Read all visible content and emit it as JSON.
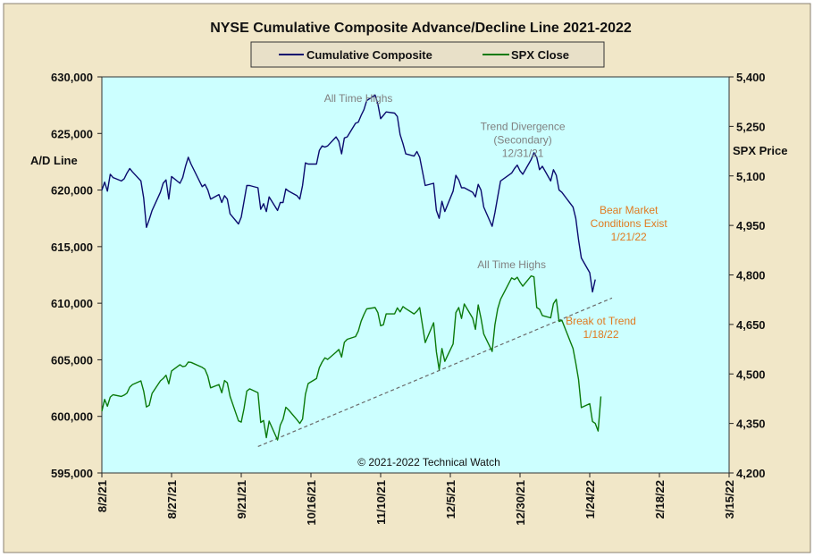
{
  "chart_data": {
    "type": "line",
    "title": "NYSE Cumulative  Composite Advance/Decline Line 2021-2022",
    "left_axis_label": "A/D Line",
    "right_axis_label": "SPX Price",
    "left_ylim": [
      595000,
      630000
    ],
    "right_ylim": [
      4200,
      5400
    ],
    "left_ticks": [
      "630,000",
      "625,000",
      "620,000",
      "615,000",
      "610,000",
      "605,000",
      "600,000",
      "595,000"
    ],
    "right_ticks": [
      "5,400",
      "5,250",
      "5,100",
      "4,950",
      "4,800",
      "4,650",
      "4,500",
      "4,350",
      "4,200"
    ],
    "x_ticks": [
      "8/2/21",
      "8/27/21",
      "9/21/21",
      "10/16/21",
      "11/10/21",
      "12/5/21",
      "12/30/21",
      "1/24/22",
      "2/18/22",
      "3/15/22"
    ],
    "xlim": [
      "2021-08-02",
      "2022-03-15"
    ],
    "grid": false,
    "legend_position": "top-center",
    "plot_background": "#ccffff",
    "frame_background": "#f1e7c8",
    "copyright": "© 2021-2022  Technical Watch",
    "series": [
      {
        "name": "Cumulative Composite",
        "axis": "left",
        "color": "#0b0b6e",
        "points": [
          [
            "2021-08-02",
            620000
          ],
          [
            "2021-08-03",
            620700
          ],
          [
            "2021-08-04",
            619900
          ],
          [
            "2021-08-05",
            621400
          ],
          [
            "2021-08-06",
            621100
          ],
          [
            "2021-08-09",
            620800
          ],
          [
            "2021-08-10",
            621000
          ],
          [
            "2021-08-11",
            621500
          ],
          [
            "2021-08-12",
            621900
          ],
          [
            "2021-08-13",
            621600
          ],
          [
            "2021-08-16",
            620800
          ],
          [
            "2021-08-17",
            619300
          ],
          [
            "2021-08-18",
            616700
          ],
          [
            "2021-08-19",
            617400
          ],
          [
            "2021-08-20",
            618200
          ],
          [
            "2021-08-23",
            619800
          ],
          [
            "2021-08-24",
            620600
          ],
          [
            "2021-08-25",
            620900
          ],
          [
            "2021-08-26",
            619200
          ],
          [
            "2021-08-27",
            621200
          ],
          [
            "2021-08-30",
            620600
          ],
          [
            "2021-08-31",
            621100
          ],
          [
            "2021-09-01",
            622100
          ],
          [
            "2021-09-02",
            622900
          ],
          [
            "2021-09-03",
            622300
          ],
          [
            "2021-09-07",
            620300
          ],
          [
            "2021-09-08",
            620500
          ],
          [
            "2021-09-09",
            620000
          ],
          [
            "2021-09-10",
            619200
          ],
          [
            "2021-09-13",
            619600
          ],
          [
            "2021-09-14",
            618900
          ],
          [
            "2021-09-15",
            619500
          ],
          [
            "2021-09-16",
            619200
          ],
          [
            "2021-09-17",
            617900
          ],
          [
            "2021-09-20",
            617000
          ],
          [
            "2021-09-21",
            617600
          ],
          [
            "2021-09-22",
            619000
          ],
          [
            "2021-09-23",
            620400
          ],
          [
            "2021-09-24",
            620400
          ],
          [
            "2021-09-27",
            620200
          ],
          [
            "2021-09-28",
            618300
          ],
          [
            "2021-09-29",
            618800
          ],
          [
            "2021-09-30",
            618100
          ],
          [
            "2021-10-01",
            619400
          ],
          [
            "2021-10-04",
            618200
          ],
          [
            "2021-10-05",
            618900
          ],
          [
            "2021-10-06",
            618900
          ],
          [
            "2021-10-07",
            620100
          ],
          [
            "2021-10-08",
            619900
          ],
          [
            "2021-10-11",
            619500
          ],
          [
            "2021-10-12",
            619200
          ],
          [
            "2021-10-13",
            620400
          ],
          [
            "2021-10-14",
            622400
          ],
          [
            "2021-10-15",
            622300
          ],
          [
            "2021-10-18",
            622300
          ],
          [
            "2021-10-19",
            623500
          ],
          [
            "2021-10-20",
            623900
          ],
          [
            "2021-10-21",
            623800
          ],
          [
            "2021-10-22",
            623900
          ],
          [
            "2021-10-25",
            624700
          ],
          [
            "2021-10-26",
            624300
          ],
          [
            "2021-10-27",
            623200
          ],
          [
            "2021-10-28",
            624600
          ],
          [
            "2021-10-29",
            624700
          ],
          [
            "2021-11-01",
            625900
          ],
          [
            "2021-11-02",
            626000
          ],
          [
            "2021-11-03",
            626600
          ],
          [
            "2021-11-04",
            627100
          ],
          [
            "2021-11-05",
            627900
          ],
          [
            "2021-11-08",
            628400
          ],
          [
            "2021-11-09",
            627600
          ],
          [
            "2021-11-10",
            626300
          ],
          [
            "2021-11-11",
            626600
          ],
          [
            "2021-11-12",
            626900
          ],
          [
            "2021-11-15",
            626800
          ],
          [
            "2021-11-16",
            626500
          ],
          [
            "2021-11-17",
            624900
          ],
          [
            "2021-11-18",
            624100
          ],
          [
            "2021-11-19",
            623200
          ],
          [
            "2021-11-22",
            623000
          ],
          [
            "2021-11-23",
            623400
          ],
          [
            "2021-11-24",
            622900
          ],
          [
            "2021-11-26",
            620400
          ],
          [
            "2021-11-29",
            620600
          ],
          [
            "2021-11-30",
            618200
          ],
          [
            "2021-12-01",
            617500
          ],
          [
            "2021-12-02",
            619000
          ],
          [
            "2021-12-03",
            618100
          ],
          [
            "2021-12-06",
            619900
          ],
          [
            "2021-12-07",
            621300
          ],
          [
            "2021-12-08",
            620900
          ],
          [
            "2021-12-09",
            620200
          ],
          [
            "2021-12-10",
            620200
          ],
          [
            "2021-12-13",
            619800
          ],
          [
            "2021-12-14",
            619400
          ],
          [
            "2021-12-15",
            620500
          ],
          [
            "2021-12-16",
            620000
          ],
          [
            "2021-12-17",
            618500
          ],
          [
            "2021-12-20",
            616800
          ],
          [
            "2021-12-21",
            618000
          ],
          [
            "2021-12-22",
            619400
          ],
          [
            "2021-12-23",
            620800
          ],
          [
            "2021-12-27",
            621500
          ],
          [
            "2021-12-28",
            621900
          ],
          [
            "2021-12-29",
            622200
          ],
          [
            "2021-12-30",
            621700
          ],
          [
            "2021-12-31",
            621400
          ],
          [
            "2022-01-03",
            622700
          ],
          [
            "2022-01-04",
            623300
          ],
          [
            "2022-01-05",
            622900
          ],
          [
            "2022-01-06",
            621800
          ],
          [
            "2022-01-07",
            622100
          ],
          [
            "2022-01-10",
            620800
          ],
          [
            "2022-01-11",
            621800
          ],
          [
            "2022-01-12",
            621300
          ],
          [
            "2022-01-13",
            620000
          ],
          [
            "2022-01-14",
            619800
          ],
          [
            "2022-01-18",
            618500
          ],
          [
            "2022-01-19",
            617500
          ],
          [
            "2022-01-20",
            615600
          ],
          [
            "2022-01-21",
            614000
          ],
          [
            "2022-01-24",
            612700
          ],
          [
            "2022-01-25",
            611000
          ],
          [
            "2022-01-26",
            612100
          ]
        ]
      },
      {
        "name": "SPX Close",
        "axis": "right",
        "color": "#0b7a0b",
        "points": [
          [
            "2021-08-02",
            4387
          ],
          [
            "2021-08-03",
            4423
          ],
          [
            "2021-08-04",
            4402
          ],
          [
            "2021-08-05",
            4430
          ],
          [
            "2021-08-06",
            4437
          ],
          [
            "2021-08-09",
            4432
          ],
          [
            "2021-08-10",
            4436
          ],
          [
            "2021-08-11",
            4442
          ],
          [
            "2021-08-12",
            4460
          ],
          [
            "2021-08-13",
            4468
          ],
          [
            "2021-08-16",
            4479
          ],
          [
            "2021-08-17",
            4448
          ],
          [
            "2021-08-18",
            4400
          ],
          [
            "2021-08-19",
            4405
          ],
          [
            "2021-08-20",
            4441
          ],
          [
            "2021-08-23",
            4479
          ],
          [
            "2021-08-24",
            4486
          ],
          [
            "2021-08-25",
            4496
          ],
          [
            "2021-08-26",
            4470
          ],
          [
            "2021-08-27",
            4509
          ],
          [
            "2021-08-30",
            4528
          ],
          [
            "2021-08-31",
            4522
          ],
          [
            "2021-09-01",
            4524
          ],
          [
            "2021-09-02",
            4536
          ],
          [
            "2021-09-03",
            4535
          ],
          [
            "2021-09-07",
            4520
          ],
          [
            "2021-09-08",
            4514
          ],
          [
            "2021-09-09",
            4493
          ],
          [
            "2021-09-10",
            4458
          ],
          [
            "2021-09-13",
            4468
          ],
          [
            "2021-09-14",
            4443
          ],
          [
            "2021-09-15",
            4480
          ],
          [
            "2021-09-16",
            4473
          ],
          [
            "2021-09-17",
            4432
          ],
          [
            "2021-09-20",
            4358
          ],
          [
            "2021-09-21",
            4354
          ],
          [
            "2021-09-22",
            4395
          ],
          [
            "2021-09-23",
            4448
          ],
          [
            "2021-09-24",
            4455
          ],
          [
            "2021-09-27",
            4443
          ],
          [
            "2021-09-28",
            4353
          ],
          [
            "2021-09-29",
            4359
          ],
          [
            "2021-09-30",
            4307
          ],
          [
            "2021-10-01",
            4357
          ],
          [
            "2021-10-04",
            4300
          ],
          [
            "2021-10-05",
            4345
          ],
          [
            "2021-10-06",
            4363
          ],
          [
            "2021-10-07",
            4399
          ],
          [
            "2021-10-08",
            4391
          ],
          [
            "2021-10-11",
            4361
          ],
          [
            "2021-10-12",
            4350
          ],
          [
            "2021-10-13",
            4363
          ],
          [
            "2021-10-14",
            4438
          ],
          [
            "2021-10-15",
            4471
          ],
          [
            "2021-10-18",
            4486
          ],
          [
            "2021-10-19",
            4519
          ],
          [
            "2021-10-20",
            4536
          ],
          [
            "2021-10-21",
            4549
          ],
          [
            "2021-10-22",
            4544
          ],
          [
            "2021-10-25",
            4566
          ],
          [
            "2021-10-26",
            4574
          ],
          [
            "2021-10-27",
            4551
          ],
          [
            "2021-10-28",
            4596
          ],
          [
            "2021-10-29",
            4605
          ],
          [
            "2021-11-01",
            4613
          ],
          [
            "2021-11-02",
            4630
          ],
          [
            "2021-11-03",
            4660
          ],
          [
            "2021-11-04",
            4680
          ],
          [
            "2021-11-05",
            4697
          ],
          [
            "2021-11-08",
            4701
          ],
          [
            "2021-11-09",
            4686
          ],
          [
            "2021-11-10",
            4646
          ],
          [
            "2021-11-11",
            4649
          ],
          [
            "2021-11-12",
            4682
          ],
          [
            "2021-11-15",
            4682
          ],
          [
            "2021-11-16",
            4700
          ],
          [
            "2021-11-17",
            4688
          ],
          [
            "2021-11-18",
            4704
          ],
          [
            "2021-11-19",
            4698
          ],
          [
            "2021-11-22",
            4682
          ],
          [
            "2021-11-23",
            4690
          ],
          [
            "2021-11-24",
            4701
          ],
          [
            "2021-11-26",
            4595
          ],
          [
            "2021-11-29",
            4655
          ],
          [
            "2021-11-30",
            4567
          ],
          [
            "2021-12-01",
            4513
          ],
          [
            "2021-12-02",
            4577
          ],
          [
            "2021-12-03",
            4538
          ],
          [
            "2021-12-06",
            4591
          ],
          [
            "2021-12-07",
            4686
          ],
          [
            "2021-12-08",
            4701
          ],
          [
            "2021-12-09",
            4668
          ],
          [
            "2021-12-10",
            4712
          ],
          [
            "2021-12-13",
            4669
          ],
          [
            "2021-12-14",
            4635
          ],
          [
            "2021-12-15",
            4709
          ],
          [
            "2021-12-16",
            4669
          ],
          [
            "2021-12-17",
            4621
          ],
          [
            "2021-12-20",
            4568
          ],
          [
            "2021-12-21",
            4649
          ],
          [
            "2021-12-22",
            4697
          ],
          [
            "2021-12-23",
            4726
          ],
          [
            "2021-12-27",
            4791
          ],
          [
            "2021-12-28",
            4786
          ],
          [
            "2021-12-29",
            4793
          ],
          [
            "2021-12-30",
            4778
          ],
          [
            "2021-12-31",
            4766
          ],
          [
            "2022-01-03",
            4797
          ],
          [
            "2022-01-04",
            4794
          ],
          [
            "2022-01-05",
            4701
          ],
          [
            "2022-01-06",
            4696
          ],
          [
            "2022-01-07",
            4677
          ],
          [
            "2022-01-10",
            4670
          ],
          [
            "2022-01-11",
            4713
          ],
          [
            "2022-01-12",
            4726
          ],
          [
            "2022-01-13",
            4659
          ],
          [
            "2022-01-14",
            4663
          ],
          [
            "2022-01-18",
            4577
          ],
          [
            "2022-01-19",
            4533
          ],
          [
            "2022-01-20",
            4483
          ],
          [
            "2022-01-21",
            4398
          ],
          [
            "2022-01-24",
            4410
          ],
          [
            "2022-01-25",
            4356
          ],
          [
            "2022-01-26",
            4350
          ],
          [
            "2022-01-27",
            4327
          ],
          [
            "2022-01-28",
            4432
          ]
        ]
      }
    ],
    "trendline": {
      "axis": "right",
      "style": "dashed",
      "color": "#6a6a6a",
      "from": [
        "2021-09-27",
        4280
      ],
      "to": [
        "2022-02-01",
        4730
      ]
    },
    "annotations": [
      {
        "lines": [
          "All Time Highs"
        ],
        "date": "2021-11-02",
        "axis": "left",
        "value": 627800,
        "color": "#808080"
      },
      {
        "lines": [
          "Trend  Divergence",
          "(Secondary)",
          "12/31/21"
        ],
        "date": "2021-12-31",
        "axis": "left",
        "value": 625300,
        "color": "#808080"
      },
      {
        "lines": [
          "All Time  Highs"
        ],
        "date": "2021-12-27",
        "axis": "right",
        "value": 4820,
        "color": "#808080"
      },
      {
        "lines": [
          "Bear Market",
          "Conditions  Exist",
          "1/21/22"
        ],
        "date": "2022-02-07",
        "axis": "right",
        "value": 4985,
        "color": "#e07a20"
      },
      {
        "lines": [
          "Break ot Trend",
          "1/18/22"
        ],
        "date": "2022-01-28",
        "axis": "right",
        "value": 4650,
        "color": "#e07a20"
      }
    ]
  }
}
